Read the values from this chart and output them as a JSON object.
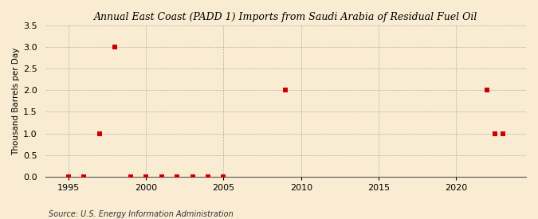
{
  "title": "Annual East Coast (PADD 1) Imports from Saudi Arabia of Residual Fuel Oil",
  "ylabel": "Thousand Barrels per Day",
  "source": "Source: U.S. Energy Information Administration",
  "background_color": "#faecd2",
  "plot_background_color": "#faecd2",
  "marker_color": "#cc0000",
  "marker_size": 4,
  "xlim": [
    1993.5,
    2024.5
  ],
  "ylim": [
    0,
    3.5
  ],
  "yticks": [
    0.0,
    0.5,
    1.0,
    1.5,
    2.0,
    2.5,
    3.0,
    3.5
  ],
  "xticks": [
    1995,
    2000,
    2005,
    2010,
    2015,
    2020
  ],
  "data_points": [
    {
      "year": 1995,
      "value": 0.0
    },
    {
      "year": 1996,
      "value": 0.0
    },
    {
      "year": 1997,
      "value": 1.0
    },
    {
      "year": 1998,
      "value": 3.0
    },
    {
      "year": 1999,
      "value": 0.0
    },
    {
      "year": 2000,
      "value": 0.0
    },
    {
      "year": 2001,
      "value": 0.0
    },
    {
      "year": 2002,
      "value": 0.0
    },
    {
      "year": 2003,
      "value": 0.0
    },
    {
      "year": 2004,
      "value": 0.0
    },
    {
      "year": 2005,
      "value": 0.0
    },
    {
      "year": 2009,
      "value": 2.0
    },
    {
      "year": 2022,
      "value": 2.0
    },
    {
      "year": 2022.5,
      "value": 1.0
    },
    {
      "year": 2023,
      "value": 1.0
    }
  ]
}
